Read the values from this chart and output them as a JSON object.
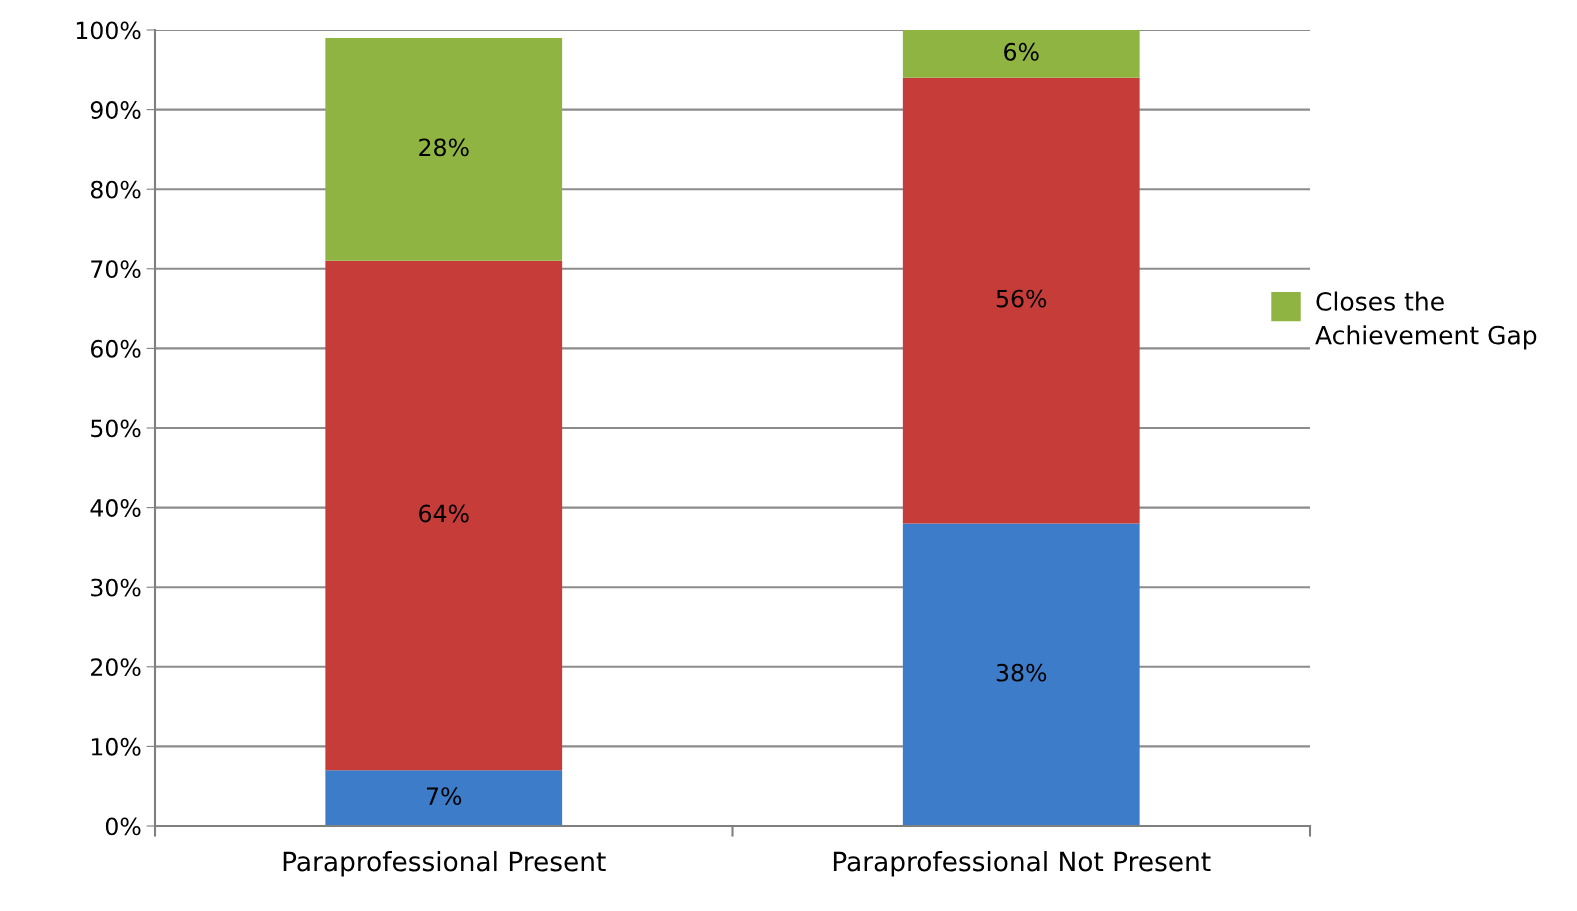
{
  "chart_data": {
    "type": "bar",
    "stacked": true,
    "categories": [
      "Paraprofessional Present",
      "Paraprofessional Not Present"
    ],
    "series": [
      {
        "color": "#3d7cc9",
        "values": [
          7,
          38
        ],
        "value_labels": [
          "7%",
          "38%"
        ]
      },
      {
        "color": "#c63c39",
        "values": [
          64,
          56
        ],
        "value_labels": [
          "64%",
          "56%"
        ]
      },
      {
        "name": "Closes the Achievement Gap",
        "color": "#8fb442",
        "values": [
          28,
          6
        ],
        "value_labels": [
          "28%",
          "6%"
        ]
      }
    ],
    "ylim": [
      0,
      100
    ],
    "yticks": [
      {
        "value": 0,
        "label": "0%"
      },
      {
        "value": 10,
        "label": "10%"
      },
      {
        "value": 20,
        "label": "20%"
      },
      {
        "value": 30,
        "label": "30%"
      },
      {
        "value": 40,
        "label": "40%"
      },
      {
        "value": 50,
        "label": "50%"
      },
      {
        "value": 60,
        "label": "60%"
      },
      {
        "value": 70,
        "label": "70%"
      },
      {
        "value": 80,
        "label": "80%"
      },
      {
        "value": 90,
        "label": "90%"
      },
      {
        "value": 100,
        "label": "100%"
      }
    ],
    "grid": "y",
    "legend": "right"
  }
}
